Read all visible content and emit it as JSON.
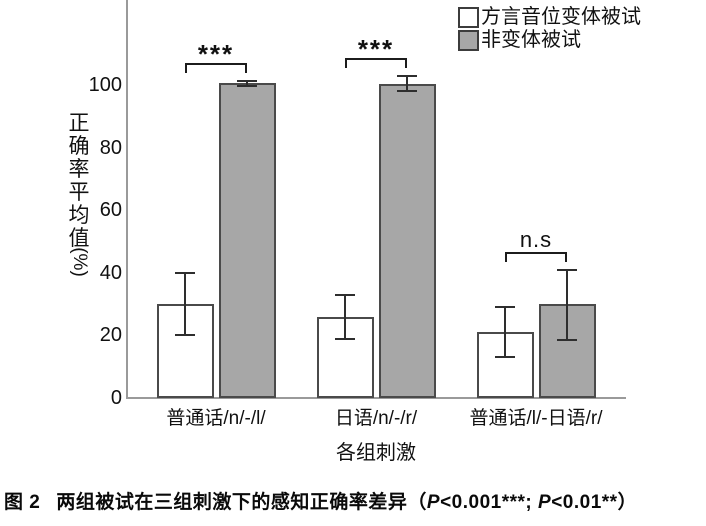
{
  "figure": {
    "caption": {
      "fig_label": "图 2",
      "title": "两组被试在三组刺激下的感知正确率差异",
      "open": "（",
      "p": "P",
      "p1_rest": "<0.001***; ",
      "p2_rest": "<0.01**",
      "close": "）"
    }
  },
  "chart_data": {
    "type": "bar",
    "title": "",
    "categories": [
      "普通话/n/-/l/",
      "日语/n/-/r/",
      "普通话/l/-日语/r/"
    ],
    "series": [
      {
        "name": "方言音位变体被试",
        "fill": "#ffffff",
        "values": [
          30,
          26,
          21
        ],
        "error_bars": [
          [
            20,
            40
          ],
          [
            19,
            33
          ],
          [
            13,
            29
          ]
        ]
      },
      {
        "name": "非变体被试",
        "fill": "#a7a7a7",
        "values": [
          100.5,
          100.3,
          30
        ],
        "error_bars": [
          [
            99.8,
            101.3
          ],
          [
            98,
            103
          ],
          [
            18.5,
            41
          ]
        ]
      }
    ],
    "significance": [
      {
        "label": "***",
        "group": 0
      },
      {
        "label": "***",
        "group": 1
      },
      {
        "label": "n.s",
        "group": 2
      }
    ],
    "xlabel": "各组刺激",
    "ylabel": "正确率平均值",
    "ylabel_unit": "(%)",
    "yticks": [
      0,
      20,
      40,
      60,
      80,
      100
    ],
    "ylim": [
      0,
      120
    ],
    "legend_position": "top-right",
    "grid": false,
    "colors": {
      "axis": "#9a9a9a",
      "bar_border": "#4a4a4a",
      "error_bar": "#2e2e2e",
      "text": "#111111"
    }
  }
}
